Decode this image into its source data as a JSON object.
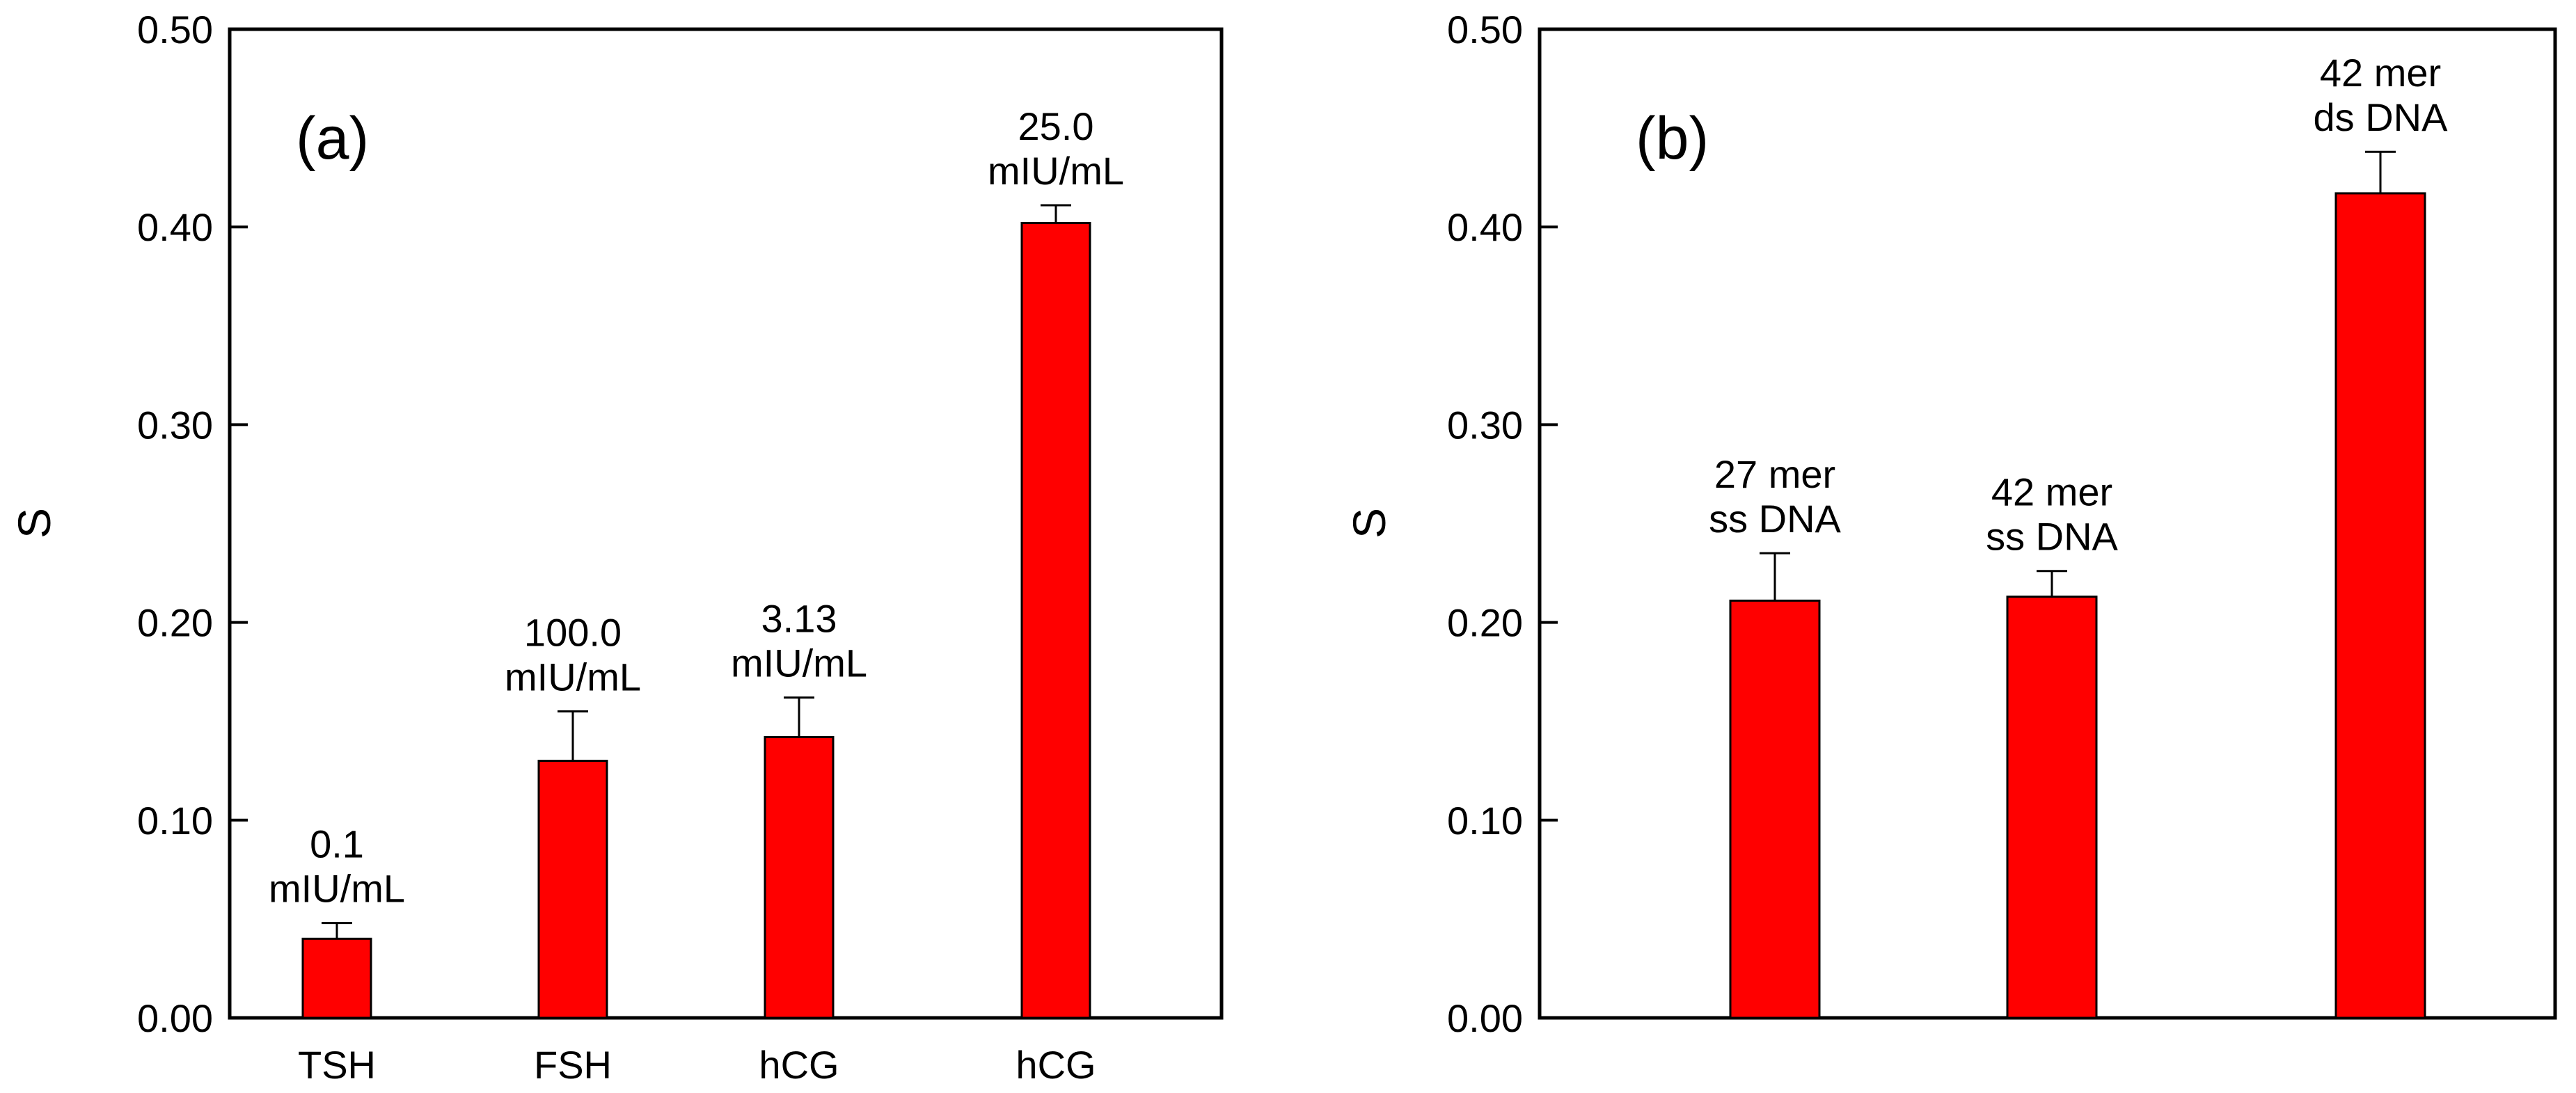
{
  "chart_data": [
    {
      "type": "bar",
      "panel_label": "(a)",
      "categories": [
        "TSH",
        "FSH",
        "hCG",
        "hCG"
      ],
      "values": [
        0.04,
        0.13,
        0.142,
        0.402
      ],
      "errors": [
        0.008,
        0.025,
        0.02,
        0.009
      ],
      "bar_labels": [
        [
          "0.1",
          "mIU/mL"
        ],
        [
          "100.0",
          "mIU/mL"
        ],
        [
          "3.13",
          "mIU/mL"
        ],
        [
          "25.0",
          "mIU/mL"
        ]
      ],
      "ylabel": "S",
      "xlabel": "",
      "ylim": [
        0,
        0.5
      ],
      "yticks": [
        0.0,
        0.1,
        0.2,
        0.3,
        0.4,
        0.5
      ],
      "ytick_labels": [
        "0.00",
        "0.10",
        "0.20",
        "0.30",
        "0.40",
        "0.50"
      ],
      "bar_color": "#ff0000"
    },
    {
      "type": "bar",
      "panel_label": "(b)",
      "categories": [
        "",
        "",
        ""
      ],
      "values": [
        0.211,
        0.213,
        0.417
      ],
      "errors": [
        0.024,
        0.013,
        0.021
      ],
      "bar_labels": [
        [
          "27 mer",
          "ss DNA"
        ],
        [
          "42 mer",
          "ss DNA"
        ],
        [
          "42 mer",
          "ds DNA"
        ]
      ],
      "ylabel": "S",
      "xlabel": "",
      "ylim": [
        0,
        0.5
      ],
      "yticks": [
        0.0,
        0.1,
        0.2,
        0.3,
        0.4,
        0.5
      ],
      "ytick_labels": [
        "0.00",
        "0.10",
        "0.20",
        "0.30",
        "0.40",
        "0.50"
      ],
      "bar_color": "#ff0000"
    }
  ]
}
